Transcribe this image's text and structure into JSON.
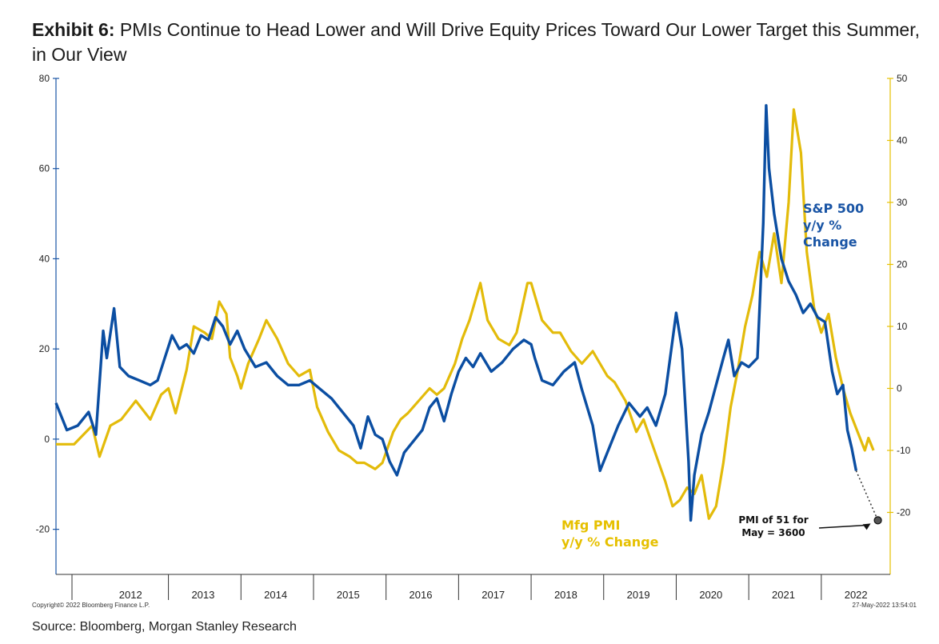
{
  "title": {
    "exhibit": "Exhibit 6:",
    "text": "PMIs Continue to Head Lower and Will Drive Equity Prices Toward Our Lower Target this Summer, in Our View"
  },
  "footer": {
    "source": "Source: Bloomberg, Morgan Stanley Research",
    "copyright": "Copyright© 2022 Bloomberg Finance L.P.",
    "timestamp": "27-May-2022 13:54:01"
  },
  "colors": {
    "sp500": "#0b4ea2",
    "pmi": "#e3bb0a",
    "axis_left": "#1a55a5",
    "axis_right": "#e6c000"
  },
  "chart_data": {
    "type": "line",
    "x_labels": [
      "2012",
      "2013",
      "2014",
      "2015",
      "2016",
      "2017",
      "2018",
      "2019",
      "2020",
      "2021",
      "2022"
    ],
    "y_left": {
      "range": [
        -30,
        80
      ],
      "ticks": [
        "80",
        "60",
        "40",
        "20",
        "0",
        "-20"
      ]
    },
    "y_right": {
      "range": [
        -30,
        50
      ],
      "ticks": [
        "50",
        "40",
        "30",
        "20",
        "10",
        "0",
        "-10",
        "-20"
      ]
    },
    "series": [
      {
        "name": "S&P 500 y/y % Change",
        "label_lines": [
          "S&P 500",
          "y/y %",
          "Change"
        ],
        "axis": "left",
        "points": [
          [
            2011.45,
            8
          ],
          [
            2011.6,
            2
          ],
          [
            2011.75,
            3
          ],
          [
            2011.9,
            6
          ],
          [
            2012.0,
            1
          ],
          [
            2012.1,
            24
          ],
          [
            2012.15,
            18
          ],
          [
            2012.25,
            29
          ],
          [
            2012.33,
            16
          ],
          [
            2012.45,
            14
          ],
          [
            2012.6,
            13
          ],
          [
            2012.75,
            12
          ],
          [
            2012.85,
            13
          ],
          [
            2012.95,
            18
          ],
          [
            2013.05,
            23
          ],
          [
            2013.15,
            20
          ],
          [
            2013.25,
            21
          ],
          [
            2013.35,
            19
          ],
          [
            2013.45,
            23
          ],
          [
            2013.55,
            22
          ],
          [
            2013.65,
            27
          ],
          [
            2013.75,
            25
          ],
          [
            2013.85,
            21
          ],
          [
            2013.95,
            24
          ],
          [
            2014.05,
            20
          ],
          [
            2014.2,
            16
          ],
          [
            2014.35,
            17
          ],
          [
            2014.5,
            14
          ],
          [
            2014.65,
            12
          ],
          [
            2014.8,
            12
          ],
          [
            2014.95,
            13
          ],
          [
            2015.1,
            11
          ],
          [
            2015.25,
            9
          ],
          [
            2015.4,
            6
          ],
          [
            2015.55,
            3
          ],
          [
            2015.65,
            -2
          ],
          [
            2015.75,
            5
          ],
          [
            2015.85,
            1
          ],
          [
            2015.95,
            0
          ],
          [
            2016.05,
            -5
          ],
          [
            2016.15,
            -8
          ],
          [
            2016.25,
            -3
          ],
          [
            2016.4,
            0
          ],
          [
            2016.5,
            2
          ],
          [
            2016.6,
            7
          ],
          [
            2016.7,
            9
          ],
          [
            2016.8,
            4
          ],
          [
            2016.9,
            10
          ],
          [
            2017.0,
            15
          ],
          [
            2017.1,
            18
          ],
          [
            2017.2,
            16
          ],
          [
            2017.3,
            19
          ],
          [
            2017.45,
            15
          ],
          [
            2017.6,
            17
          ],
          [
            2017.75,
            20
          ],
          [
            2017.9,
            22
          ],
          [
            2018.0,
            21
          ],
          [
            2018.05,
            18
          ],
          [
            2018.15,
            13
          ],
          [
            2018.3,
            12
          ],
          [
            2018.45,
            15
          ],
          [
            2018.6,
            17
          ],
          [
            2018.7,
            11
          ],
          [
            2018.85,
            3
          ],
          [
            2018.95,
            -7
          ],
          [
            2019.05,
            -3
          ],
          [
            2019.2,
            3
          ],
          [
            2019.35,
            8
          ],
          [
            2019.5,
            5
          ],
          [
            2019.6,
            7
          ],
          [
            2019.72,
            3
          ],
          [
            2019.85,
            10
          ],
          [
            2020.0,
            28
          ],
          [
            2020.08,
            20
          ],
          [
            2020.17,
            -5
          ],
          [
            2020.2,
            -18
          ],
          [
            2020.25,
            -8
          ],
          [
            2020.35,
            1
          ],
          [
            2020.45,
            6
          ],
          [
            2020.55,
            12
          ],
          [
            2020.65,
            18
          ],
          [
            2020.72,
            22
          ],
          [
            2020.8,
            14
          ],
          [
            2020.9,
            17
          ],
          [
            2021.0,
            16
          ],
          [
            2021.12,
            18
          ],
          [
            2021.2,
            48
          ],
          [
            2021.24,
            74
          ],
          [
            2021.28,
            60
          ],
          [
            2021.35,
            50
          ],
          [
            2021.45,
            40
          ],
          [
            2021.55,
            35
          ],
          [
            2021.65,
            32
          ],
          [
            2021.75,
            28
          ],
          [
            2021.85,
            30
          ],
          [
            2021.95,
            27
          ],
          [
            2022.05,
            26
          ],
          [
            2022.15,
            15
          ],
          [
            2022.22,
            10
          ],
          [
            2022.3,
            12
          ],
          [
            2022.36,
            2
          ],
          [
            2022.42,
            -2
          ],
          [
            2022.48,
            -7
          ]
        ]
      },
      {
        "name": "Mfg PMI y/y % Change",
        "label_lines": [
          "Mfg PMI",
          "y/y % Change"
        ],
        "axis": "right",
        "points": [
          [
            2011.45,
            -9
          ],
          [
            2011.7,
            -9
          ],
          [
            2011.95,
            -6
          ],
          [
            2012.05,
            -11
          ],
          [
            2012.2,
            -6
          ],
          [
            2012.35,
            -5
          ],
          [
            2012.55,
            -2
          ],
          [
            2012.75,
            -5
          ],
          [
            2012.9,
            -1
          ],
          [
            2013.0,
            0
          ],
          [
            2013.1,
            -4
          ],
          [
            2013.25,
            3
          ],
          [
            2013.35,
            10
          ],
          [
            2013.5,
            9
          ],
          [
            2013.6,
            8
          ],
          [
            2013.7,
            14
          ],
          [
            2013.8,
            12
          ],
          [
            2013.85,
            5
          ],
          [
            2013.95,
            2
          ],
          [
            2014.0,
            0
          ],
          [
            2014.1,
            4
          ],
          [
            2014.25,
            8
          ],
          [
            2014.35,
            11
          ],
          [
            2014.5,
            8
          ],
          [
            2014.65,
            4
          ],
          [
            2014.8,
            2
          ],
          [
            2014.95,
            3
          ],
          [
            2015.05,
            -3
          ],
          [
            2015.2,
            -7
          ],
          [
            2015.35,
            -10
          ],
          [
            2015.5,
            -11
          ],
          [
            2015.6,
            -12
          ],
          [
            2015.7,
            -12
          ],
          [
            2015.85,
            -13
          ],
          [
            2015.95,
            -12
          ],
          [
            2016.1,
            -7
          ],
          [
            2016.2,
            -5
          ],
          [
            2016.3,
            -4
          ],
          [
            2016.45,
            -2
          ],
          [
            2016.6,
            0
          ],
          [
            2016.7,
            -1
          ],
          [
            2016.8,
            0
          ],
          [
            2016.95,
            4
          ],
          [
            2017.05,
            8
          ],
          [
            2017.15,
            11
          ],
          [
            2017.3,
            17
          ],
          [
            2017.4,
            11
          ],
          [
            2017.55,
            8
          ],
          [
            2017.7,
            7
          ],
          [
            2017.8,
            9
          ],
          [
            2017.95,
            17
          ],
          [
            2018.0,
            17
          ],
          [
            2018.15,
            11
          ],
          [
            2018.3,
            9
          ],
          [
            2018.4,
            9
          ],
          [
            2018.55,
            6
          ],
          [
            2018.7,
            4
          ],
          [
            2018.85,
            6
          ],
          [
            2018.95,
            4
          ],
          [
            2019.05,
            2
          ],
          [
            2019.15,
            1
          ],
          [
            2019.3,
            -2
          ],
          [
            2019.45,
            -7
          ],
          [
            2019.55,
            -5
          ],
          [
            2019.7,
            -10
          ],
          [
            2019.85,
            -15
          ],
          [
            2019.95,
            -19
          ],
          [
            2020.05,
            -18
          ],
          [
            2020.15,
            -16
          ],
          [
            2020.25,
            -17
          ],
          [
            2020.35,
            -14
          ],
          [
            2020.45,
            -21
          ],
          [
            2020.55,
            -19
          ],
          [
            2020.65,
            -12
          ],
          [
            2020.75,
            -3
          ],
          [
            2020.85,
            3
          ],
          [
            2020.95,
            10
          ],
          [
            2021.05,
            15
          ],
          [
            2021.15,
            22
          ],
          [
            2021.25,
            18
          ],
          [
            2021.35,
            25
          ],
          [
            2021.45,
            17
          ],
          [
            2021.55,
            30
          ],
          [
            2021.62,
            45
          ],
          [
            2021.72,
            38
          ],
          [
            2021.8,
            22
          ],
          [
            2021.9,
            13
          ],
          [
            2022.0,
            9
          ],
          [
            2022.1,
            12
          ],
          [
            2022.2,
            5
          ],
          [
            2022.3,
            0
          ],
          [
            2022.4,
            -4
          ],
          [
            2022.5,
            -7
          ],
          [
            2022.6,
            -10
          ],
          [
            2022.65,
            -8
          ],
          [
            2022.72,
            -10
          ]
        ]
      }
    ],
    "annotation": {
      "lines": [
        "PMI of 51 for",
        "May = 3600"
      ],
      "point": [
        2022.78,
        -18
      ]
    }
  }
}
